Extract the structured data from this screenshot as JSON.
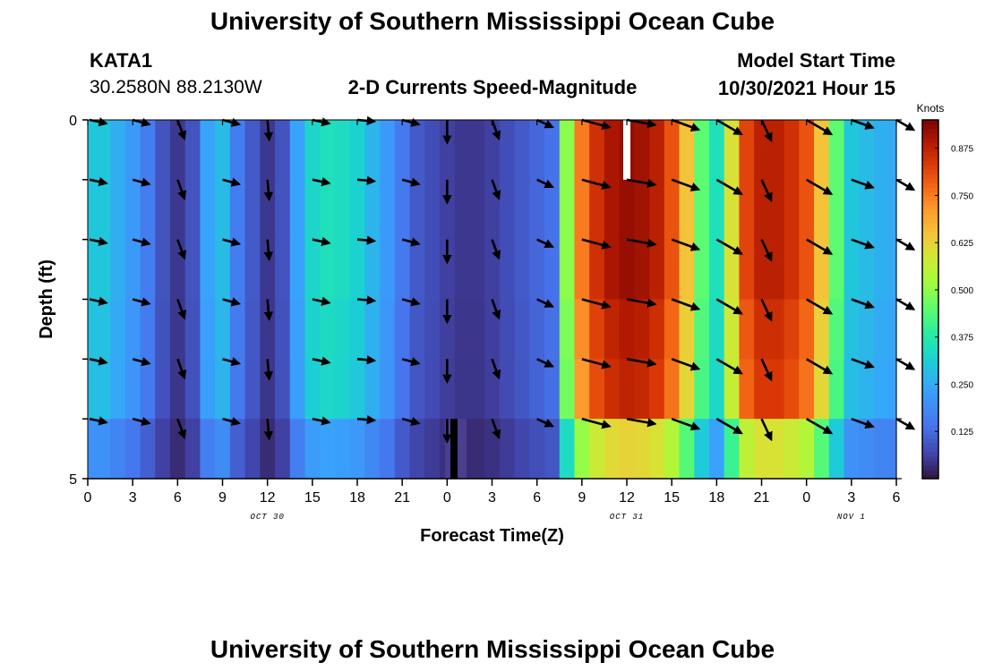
{
  "page": {
    "title_top": "University of Southern Mississippi Ocean Cube",
    "title_bottom": "University of Southern Mississippi Ocean Cube",
    "station_id": "KATA1",
    "station_coords": "30.2580N  88.2130W",
    "chart_heading": "2-D Currents Speed-Magnitude",
    "model_start_label": "Model Start Time",
    "model_start_value": "10/30/2021 Hour 15"
  },
  "chart_data": {
    "type": "heatmap",
    "title": "2-D Currents Speed-Magnitude",
    "xlabel": "Forecast Time(Z)",
    "ylabel": "Depth (ft)",
    "x_tick_labels": [
      "0",
      "3",
      "6",
      "9",
      "12",
      "15",
      "18",
      "21",
      "0",
      "3",
      "6",
      "9",
      "12",
      "15",
      "18",
      "21",
      "0",
      "3",
      "6"
    ],
    "date_labels": [
      {
        "text": "OCT 30",
        "at_tick": 4
      },
      {
        "text": "OCT 31",
        "at_tick": 12
      },
      {
        "text": "NOV 1",
        "at_tick": 17
      }
    ],
    "y_tick_labels": [
      "0",
      "5"
    ],
    "ylim": [
      0,
      5
    ],
    "xlim_hours": [
      0,
      54
    ],
    "colorbar": {
      "title": "Knots",
      "ticks": [
        "0.125",
        "0.250",
        "0.375",
        "0.500",
        "0.625",
        "0.750",
        "0.875"
      ],
      "range": [
        0,
        0.95
      ]
    },
    "depth_levels": 5,
    "hours": [
      0,
      1,
      2,
      3,
      4,
      5,
      6,
      7,
      8,
      9,
      10,
      11,
      12,
      13,
      14,
      15,
      16,
      17,
      18,
      19,
      20,
      21,
      22,
      23,
      24,
      25,
      26,
      27,
      28,
      29,
      30,
      31,
      32,
      33,
      34,
      35,
      36,
      37,
      38,
      39,
      40,
      41,
      42,
      43,
      44,
      45,
      46,
      47,
      48,
      49,
      50,
      51,
      52,
      53,
      54
    ],
    "speed_profile_knots": [
      0.3,
      0.3,
      0.26,
      0.22,
      0.16,
      0.09,
      0.05,
      0.09,
      0.24,
      0.28,
      0.16,
      0.1,
      0.05,
      0.09,
      0.24,
      0.33,
      0.35,
      0.34,
      0.32,
      0.27,
      0.22,
      0.15,
      0.1,
      0.08,
      0.06,
      0.05,
      0.05,
      0.06,
      0.08,
      0.1,
      0.12,
      0.14,
      0.5,
      0.75,
      0.85,
      0.9,
      0.92,
      0.91,
      0.88,
      0.8,
      0.65,
      0.45,
      0.35,
      0.6,
      0.82,
      0.88,
      0.88,
      0.85,
      0.8,
      0.65,
      0.45,
      0.3,
      0.28,
      0.26,
      0.25
    ],
    "layer_factors": [
      1.0,
      1.0,
      1.0,
      0.97,
      0.95,
      0.68
    ],
    "vector_hours": [
      0,
      3,
      6,
      9,
      12,
      15,
      18,
      21,
      24,
      27,
      30,
      33,
      36,
      39,
      42,
      45,
      48,
      51,
      54
    ],
    "vector_rows": [
      0,
      1,
      2,
      3,
      4,
      5
    ],
    "direction_profile_deg": [
      12,
      15,
      70,
      15,
      85,
      12,
      5,
      15,
      90,
      70,
      25,
      15,
      10,
      20,
      30,
      65,
      30,
      20,
      30
    ],
    "vector_length_factors": [
      0.6,
      0.6,
      0.7,
      0.6,
      0.7,
      0.6,
      0.6,
      0.6,
      0.8,
      0.7,
      0.6,
      1.0,
      1.0,
      1.0,
      1.0,
      0.8,
      1.0,
      0.8,
      0.7
    ]
  }
}
